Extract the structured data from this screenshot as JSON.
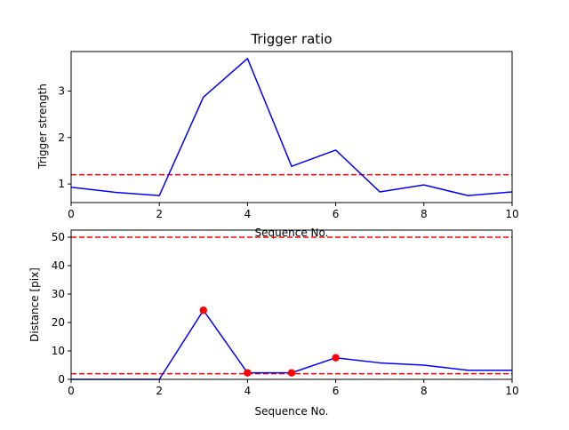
{
  "chart_data": [
    {
      "type": "line",
      "title": "Trigger ratio",
      "xlabel": "Sequence No.",
      "ylabel": "Trigger strength",
      "xlim": [
        0,
        10
      ],
      "ylim": [
        0.6,
        3.85
      ],
      "xticks": [
        0,
        2,
        4,
        6,
        8,
        10
      ],
      "yticks": [
        1,
        2,
        3
      ],
      "grid": false,
      "series": [
        {
          "color": "#0000ff",
          "style": "solid",
          "x": [
            0,
            1,
            2,
            3,
            4,
            5,
            6,
            7,
            8,
            9,
            10
          ],
          "values": [
            0.93,
            0.82,
            0.75,
            2.87,
            3.7,
            1.38,
            1.73,
            0.83,
            0.98,
            0.75,
            0.83
          ]
        }
      ],
      "hlines": [
        {
          "y": 1.2,
          "color": "#ff0000",
          "style": "dashed"
        }
      ]
    },
    {
      "type": "line",
      "title": "",
      "xlabel": "Sequence No.",
      "ylabel": "Distance [pix]",
      "xlim": [
        0,
        10
      ],
      "ylim": [
        0,
        52.5
      ],
      "xticks": [
        0,
        2,
        4,
        6,
        8,
        10
      ],
      "yticks": [
        0,
        10,
        20,
        30,
        40,
        50
      ],
      "grid": false,
      "series": [
        {
          "color": "#0000ff",
          "style": "solid",
          "x": [
            0,
            1,
            2,
            3,
            4,
            5,
            6,
            7,
            8,
            9,
            10
          ],
          "values": [
            0,
            0,
            0,
            24.3,
            2.3,
            2.3,
            7.6,
            5.8,
            5.0,
            3.2,
            3.2
          ]
        }
      ],
      "markers": {
        "color": "#ff0000",
        "x": [
          3,
          4,
          5,
          6
        ],
        "values": [
          24.3,
          2.3,
          2.3,
          7.6
        ]
      },
      "hlines": [
        {
          "y": 50,
          "color": "#ff0000",
          "style": "dashed"
        },
        {
          "y": 2,
          "color": "#ff0000",
          "style": "dashed"
        }
      ]
    }
  ]
}
